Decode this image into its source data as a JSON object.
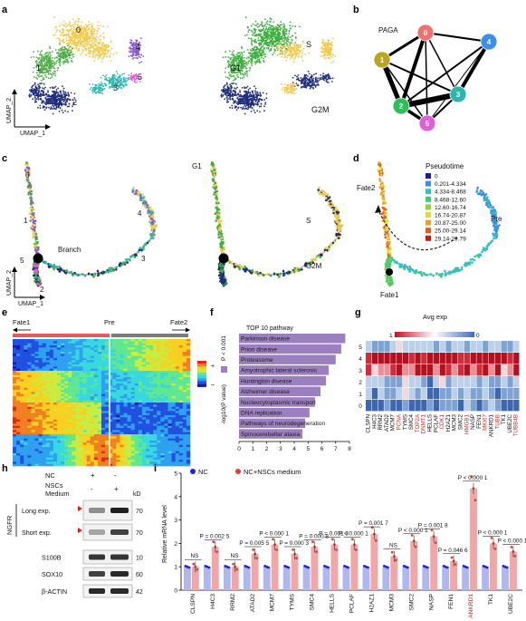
{
  "panels": {
    "a": {
      "letter": "a",
      "clusters": [
        "0",
        "1",
        "2",
        "3",
        "4",
        "5"
      ],
      "phases": [
        "G1",
        "S",
        "G2M"
      ],
      "xlabel": "UMAP_1",
      "ylabel": "UMAP_2"
    },
    "b": {
      "letter": "b",
      "title": "PAGA",
      "nodes": [
        {
          "id": "0",
          "color": "#f07070"
        },
        {
          "id": "1",
          "color": "#b9a51e"
        },
        {
          "id": "2",
          "color": "#2fbf5a"
        },
        {
          "id": "3",
          "color": "#2ab7b0"
        },
        {
          "id": "4",
          "color": "#3b8fe8"
        },
        {
          "id": "5",
          "color": "#e060d8"
        }
      ]
    },
    "c": {
      "letter": "c",
      "branch_labels": [
        "0",
        "1",
        "2",
        "3",
        "4",
        "5"
      ],
      "branch": "Branch",
      "phases": [
        "G1",
        "S",
        "G2M"
      ],
      "xlabel": "UMAP_1",
      "ylabel": "UMAP_2"
    },
    "d": {
      "letter": "d",
      "legend_title": "Pseudotime",
      "legend": [
        {
          "label": "0",
          "color": "#1a1aa8"
        },
        {
          "label": "0.201-4.334",
          "color": "#3f8fe0"
        },
        {
          "label": "4.334-8.468",
          "color": "#2fc0d0"
        },
        {
          "label": "8.468-12.60",
          "color": "#45c77a"
        },
        {
          "label": "12.60-16.74",
          "color": "#8fd13a"
        },
        {
          "label": "16.74-20.87",
          "color": "#e0dc30"
        },
        {
          "label": "20.87-25.00",
          "color": "#f0a020"
        },
        {
          "label": "25.00-29.14",
          "color": "#e85a18"
        },
        {
          "label": "29.14-29.79",
          "color": "#c81818"
        }
      ],
      "fate2": "Fate2",
      "fate1": "Fate1",
      "pre": "Pre"
    },
    "e": {
      "letter": "e",
      "fate1": "Fate1",
      "pre": "Pre",
      "fate2": "Fate2",
      "scale_labels": [
        "+",
        "–"
      ]
    },
    "f": {
      "letter": "f",
      "title": "TOP 10 pathway",
      "pval_note": "P < 0.001",
      "xlabel": "-log10(P value)",
      "ticks": [
        "0",
        "1",
        "2",
        "3",
        "4",
        "5",
        "6",
        "7",
        "8"
      ]
    },
    "g": {
      "letter": "g",
      "title": "Avg exp",
      "scale_low": "1",
      "scale_high": "0",
      "rows": [
        "5",
        "4",
        "3",
        "2",
        "1",
        "0"
      ],
      "genes": [
        {
          "name": "CLSPN",
          "red": false
        },
        {
          "name": "H4C3",
          "red": false
        },
        {
          "name": "RRM2",
          "red": false
        },
        {
          "name": "ATAD2",
          "red": false
        },
        {
          "name": "MCM7",
          "red": false
        },
        {
          "name": "PCNA",
          "red": true
        },
        {
          "name": "TYMS",
          "red": false
        },
        {
          "name": "SMC4",
          "red": false
        },
        {
          "name": "TOP2A",
          "red": true
        },
        {
          "name": "DNMT1",
          "red": true
        },
        {
          "name": "HELLS",
          "red": false
        },
        {
          "name": "PCLAF",
          "red": false
        },
        {
          "name": "CDK1",
          "red": true
        },
        {
          "name": "H2AZ1",
          "red": false
        },
        {
          "name": "MCM3",
          "red": false
        },
        {
          "name": "SMC2",
          "red": false
        },
        {
          "name": "HMGB1",
          "red": true
        },
        {
          "name": "NASP",
          "red": false
        },
        {
          "name": "FEN1",
          "red": false
        },
        {
          "name": "MKI67",
          "red": true
        },
        {
          "name": "ANKRD1",
          "red": false
        },
        {
          "name": "TUBB",
          "red": true
        },
        {
          "name": "TK1",
          "red": false
        },
        {
          "name": "UBE2C",
          "red": false
        },
        {
          "name": "TUBB4B",
          "red": true
        }
      ]
    },
    "h": {
      "letter": "h",
      "nc": "NC",
      "nscs": "NSCs",
      "medium": "Medium",
      "nc_signs": [
        "+",
        "-"
      ],
      "nscs_signs": [
        "-",
        "+"
      ],
      "kd": "kD",
      "group_label": "NGFR",
      "bands": [
        {
          "label": "Long exp.",
          "kd": "70"
        },
        {
          "label": "Short exp.",
          "kd": "70"
        },
        {
          "label": "S100B",
          "kd": "10"
        },
        {
          "label": "SOX10",
          "kd": "60"
        },
        {
          "label": "β-ACTIN",
          "kd": "42"
        }
      ]
    },
    "i": {
      "letter": "i",
      "legend_nc": "NC",
      "legend_nscs": "NC+NSCs medium",
      "ylabel": "Relative mRNA level",
      "yticks": [
        "0",
        "1",
        "2",
        "3",
        "4",
        "5"
      ]
    }
  },
  "chart_data": [
    {
      "type": "bar",
      "title": "TOP 10 pathway",
      "xlabel": "-log10(P value)",
      "xlim": [
        0,
        8
      ],
      "categories": [
        "Parkinson disease",
        "Prion disease",
        "Proteasome",
        "Amyotrophic lateral sclerosis",
        "Huntington disease",
        "Alzheimer disease",
        "Nucleocytoplasmic transport",
        "DNA replication",
        "Pathways of neurodegeneration",
        "Spinocerebellar ataxia"
      ],
      "values": [
        7.7,
        7.4,
        7.0,
        6.5,
        6.3,
        5.9,
        5.5,
        5.1,
        4.8,
        4.6
      ]
    },
    {
      "type": "bar",
      "ylabel": "Relative mRNA level",
      "ylim": [
        0,
        5
      ],
      "categories": [
        "CLSPN",
        "H4C3",
        "RRM2",
        "ATAD2",
        "MCM7",
        "TYMS",
        "SMC4",
        "HELLS",
        "PCLAF",
        "H2AZ1",
        "MCM3",
        "SMC2",
        "NASP",
        "FEN1",
        "ANKRD1",
        "TK1",
        "UBE2C"
      ],
      "highlight": "ANKRD1",
      "series": [
        {
          "name": "NC",
          "values": [
            1,
            1,
            1,
            1,
            1,
            1,
            1,
            1,
            1,
            1,
            1,
            1,
            1,
            1,
            1,
            1,
            1
          ]
        },
        {
          "name": "NC+NSCs medium",
          "values": [
            1.0,
            1.85,
            1.0,
            1.55,
            1.95,
            1.55,
            1.85,
            1.95,
            1.95,
            2.4,
            1.45,
            2.1,
            2.3,
            1.25,
            4.35,
            2.0,
            1.65
          ]
        }
      ],
      "pvalues": [
        "NS",
        "P = 0.002 5",
        "NS",
        "P = 0.005 5",
        "P < 0.000 1",
        "P = 0.000 3",
        "P = 0.000 8",
        "P = 0.001 3",
        "P < 0.000 1",
        "P = 0.001 7",
        "NS",
        "P < 0.000 1",
        "P = 0.001 8",
        "P = 0.046 6",
        "P < 0.000 1",
        "P < 0.000 1",
        "P < 0.000 1"
      ]
    }
  ]
}
